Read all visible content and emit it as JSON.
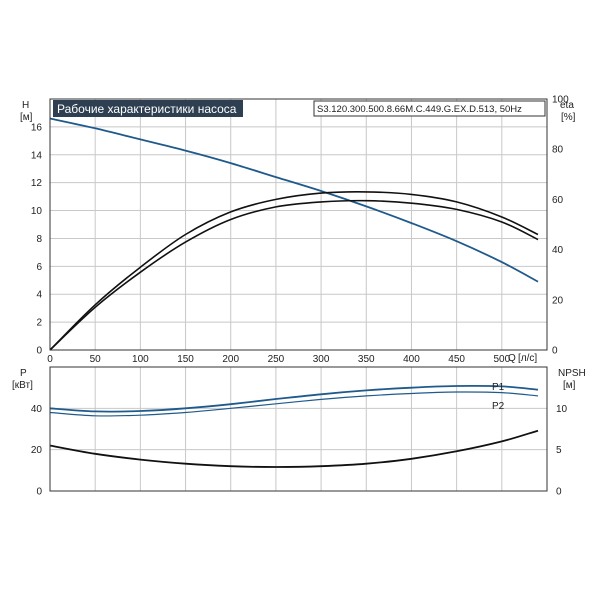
{
  "header": {
    "title": "Рабочие характеристики насоса",
    "model": "S3.120.300.500.8.66M.C.449.G.EX.D.513, 50Hz"
  },
  "colors": {
    "head_curve": "#1f5a8c",
    "efficiency_curve": "#111111",
    "power_curve": "#1f5a8c",
    "npsh_curve": "#111111",
    "title_bg": "#2e3f52",
    "title_fg": "#ffffff",
    "grid": "#c8c8c8"
  },
  "chart_data": [
    {
      "type": "line",
      "panel": "head-efficiency",
      "x_label": "Q",
      "x_unit": "[л/с]",
      "y_left_label": "H",
      "y_left_unit": "[м]",
      "y_right_label": "eta",
      "y_right_unit": "[%]",
      "xlim": [
        0,
        550
      ],
      "ylim_left": [
        0,
        18
      ],
      "ylim_right": [
        0,
        100
      ],
      "x_ticks": [
        0,
        50,
        100,
        150,
        200,
        250,
        300,
        350,
        400,
        450,
        500
      ],
      "y_left_ticks": [
        0,
        2,
        4,
        6,
        8,
        10,
        12,
        14,
        16
      ],
      "y_right_ticks": [
        0,
        20,
        40,
        60,
        80,
        100
      ],
      "grid": true,
      "series": [
        {
          "key": "head",
          "axis": "left",
          "x": [
            0,
            50,
            100,
            150,
            200,
            250,
            300,
            350,
            400,
            450,
            500,
            540
          ],
          "y": [
            16.6,
            15.9,
            15.1,
            14.3,
            13.4,
            12.4,
            11.4,
            10.3,
            9.1,
            7.8,
            6.3,
            4.9
          ]
        },
        {
          "key": "eta-upper",
          "axis": "right",
          "x": [
            0,
            50,
            100,
            150,
            200,
            250,
            300,
            350,
            400,
            450,
            500,
            540
          ],
          "y": [
            0,
            18,
            33,
            46,
            55,
            60,
            62.5,
            63,
            62,
            59,
            53,
            46
          ]
        },
        {
          "key": "eta-lower",
          "axis": "right",
          "x": [
            0,
            50,
            100,
            150,
            200,
            250,
            300,
            350,
            400,
            450,
            500,
            540
          ],
          "y": [
            0,
            17,
            31,
            43,
            52,
            57,
            59,
            59.5,
            58.5,
            56,
            51,
            44
          ]
        }
      ]
    },
    {
      "type": "line",
      "panel": "power-npsh",
      "y_left_label": "P",
      "y_left_unit": "[кВт]",
      "y_right_label": "NPSH",
      "y_right_unit": "[м]",
      "xlim": [
        0,
        550
      ],
      "ylim_left": [
        0,
        60
      ],
      "ylim_right": [
        0,
        15
      ],
      "y_left_ticks": [
        0,
        20,
        40
      ],
      "y_right_ticks": [
        0,
        5,
        10
      ],
      "grid": true,
      "series": [
        {
          "name": "P1",
          "axis": "left",
          "x": [
            0,
            50,
            100,
            150,
            200,
            250,
            300,
            350,
            400,
            450,
            500,
            540
          ],
          "y": [
            40,
            38.5,
            38.7,
            40,
            42,
            44.5,
            46.8,
            48.7,
            50,
            50.8,
            50.6,
            49
          ]
        },
        {
          "name": "P2",
          "axis": "left",
          "x": [
            0,
            50,
            100,
            150,
            200,
            250,
            300,
            350,
            400,
            450,
            500,
            540
          ],
          "y": [
            38,
            36.4,
            36.7,
            38,
            40,
            42.2,
            44.3,
            46,
            47.2,
            47.9,
            47.6,
            46
          ]
        },
        {
          "key": "npsh",
          "axis": "right",
          "x": [
            0,
            50,
            100,
            150,
            200,
            250,
            300,
            350,
            400,
            450,
            500,
            540
          ],
          "y": [
            5.5,
            4.5,
            3.8,
            3.3,
            3.0,
            2.9,
            3.0,
            3.3,
            3.9,
            4.8,
            6.0,
            7.3
          ]
        }
      ]
    }
  ]
}
